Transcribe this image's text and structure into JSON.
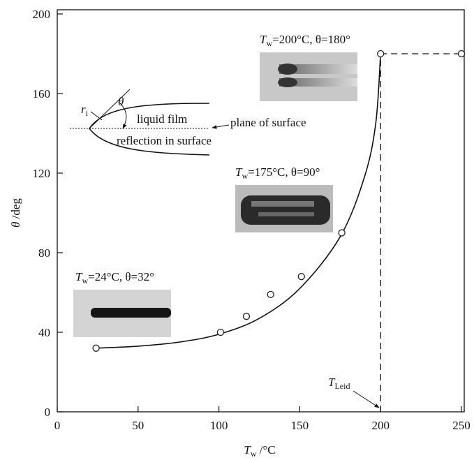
{
  "chart_data": {
    "type": "scatter",
    "x_label": {
      "symbol": "T",
      "subscript": "w",
      "rest": " /°C"
    },
    "y_label": {
      "symbol": "θ",
      "rest": " /deg"
    },
    "xlim": [
      0,
      250
    ],
    "xticks": [
      0,
      50,
      100,
      150,
      200,
      250
    ],
    "ylim": [
      0,
      200
    ],
    "yticks": [
      0,
      40,
      80,
      120,
      160,
      200
    ],
    "series": [
      {
        "x": [
          24,
          101,
          117,
          132,
          151,
          176,
          200,
          250
        ],
        "values": [
          32,
          40,
          48,
          59,
          68,
          90,
          180,
          180
        ],
        "color": "#222222"
      },
      {
        "x": [
          24,
          50,
          75,
          100,
          125,
          150,
          175,
          190,
          197,
          200
        ],
        "values": [
          32,
          33,
          35,
          39,
          47,
          62,
          88,
          118,
          145,
          180
        ],
        "color": "#111111"
      }
    ],
    "annotations": [
      {
        "symbol": "T",
        "subscript": "w",
        "rest": "=200°C, θ=180°"
      },
      {
        "symbol": "T",
        "subscript": "w",
        "rest": "=175°C, θ=90°"
      },
      {
        "symbol": "T",
        "subscript": "w",
        "rest": "=24°C, θ=32°"
      }
    ],
    "t_leid": {
      "symbol": "T",
      "subscript": "Leid",
      "value": 200
    },
    "inset": {
      "liquid_film": "liquid film",
      "plane": "plane of surface",
      "reflection": "reflection in surface",
      "angle": "θ",
      "radius": {
        "symbol": "r",
        "subscript": "i"
      }
    }
  }
}
